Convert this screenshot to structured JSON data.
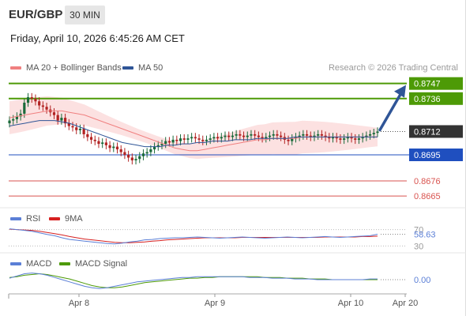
{
  "header": {
    "pair": "EUR/GBP",
    "timeframe": "30 MIN",
    "datetime": "Friday, April 10, 2026 6:45:26 AM CET"
  },
  "legend": {
    "ma20_label": "MA 20 + Bollinger Bands",
    "ma50_label": "MA 50",
    "credit": "Research © 2026 Trading Central",
    "rsi_label": "RSI",
    "rsi_ma_label": "9MA",
    "macd_label": "MACD",
    "macd_signal_label": "MACD Signal"
  },
  "colors": {
    "ma20": "#f08080",
    "ma50": "#2f5597",
    "bollinger_fill": "#fbdada",
    "candle_up": "#1a6a3a",
    "candle_down": "#b22222",
    "resistance": "#4d9a06",
    "support": "#1f4fbf",
    "minor_level": "#d9534f",
    "arrow": "#2f5597",
    "rsi": "#5b7fd6",
    "rsi_ma": "#d62020",
    "macd": "#5b7fd6",
    "macd_signal": "#4d9a06"
  },
  "chart_data": [
    {
      "type": "candlestick",
      "panel": "price",
      "ylim": [
        0.8657,
        0.8752
      ],
      "x_ticks": [
        "Apr 8",
        "Apr 9",
        "Apr 10",
        "Apr 20"
      ],
      "current_price": "0.8712",
      "levels": [
        {
          "value": 0.8747,
          "label": "0.8747",
          "kind": "resistance"
        },
        {
          "value": 0.8736,
          "label": "0.8736",
          "kind": "resistance"
        },
        {
          "value": 0.8695,
          "label": "0.8695",
          "kind": "support"
        },
        {
          "value": 0.8676,
          "label": "0.8676",
          "kind": "minor"
        },
        {
          "value": 0.8665,
          "label": "0.8665",
          "kind": "minor"
        }
      ],
      "projection": {
        "from": 0.8712,
        "to": 0.8747
      },
      "close": [
        0.872,
        0.8721,
        0.8723,
        0.8725,
        0.8733,
        0.8737,
        0.8736,
        0.8734,
        0.8731,
        0.873,
        0.8728,
        0.8726,
        0.8724,
        0.872,
        0.8722,
        0.8718,
        0.8716,
        0.8715,
        0.8713,
        0.8714,
        0.871,
        0.8708,
        0.8706,
        0.8705,
        0.8703,
        0.8704,
        0.8702,
        0.87,
        0.8701,
        0.8699,
        0.8697,
        0.8695,
        0.8693,
        0.8691,
        0.8692,
        0.8694,
        0.8696,
        0.8697,
        0.8699,
        0.8701,
        0.8702,
        0.8703,
        0.8705,
        0.8704,
        0.8706,
        0.8705,
        0.8707,
        0.8706,
        0.8707,
        0.8708,
        0.8707,
        0.8706,
        0.8705,
        0.8706,
        0.8707,
        0.8708,
        0.8707,
        0.8708,
        0.8709,
        0.8708,
        0.8709,
        0.871,
        0.8709,
        0.8708,
        0.8709,
        0.871,
        0.8709,
        0.8708,
        0.8707,
        0.8708,
        0.8709,
        0.871,
        0.8709,
        0.8708,
        0.8706,
        0.8705,
        0.8707,
        0.8708,
        0.8709,
        0.871,
        0.8709,
        0.8708,
        0.8709,
        0.871,
        0.8709,
        0.8708,
        0.8707,
        0.8708,
        0.8707,
        0.8706,
        0.8707,
        0.8708,
        0.8707,
        0.8706,
        0.8707,
        0.8708,
        0.8709,
        0.871,
        0.8711,
        0.8712
      ],
      "ma20": [
        0.8722,
        0.8723,
        0.8724,
        0.8725,
        0.8726,
        0.8727,
        0.8727,
        0.8727,
        0.8726,
        0.8725,
        0.8724,
        0.8722,
        0.872,
        0.8718,
        0.8716,
        0.8714,
        0.8712,
        0.871,
        0.8708,
        0.8706,
        0.8704,
        0.8702,
        0.87,
        0.8699,
        0.8698,
        0.8698,
        0.8699,
        0.87,
        0.8701,
        0.8702,
        0.8703,
        0.8704,
        0.8705,
        0.8706,
        0.8706,
        0.8707,
        0.8707,
        0.8707,
        0.8707,
        0.8708,
        0.8708,
        0.8708,
        0.8708,
        0.8708,
        0.8708,
        0.8708,
        0.8708,
        0.8708,
        0.8708,
        0.8708
      ],
      "ma50": [
        0.8716,
        0.8717,
        0.8718,
        0.8719,
        0.872,
        0.872,
        0.872,
        0.8719,
        0.8718,
        0.8716,
        0.8714,
        0.8712,
        0.871,
        0.8708,
        0.8706,
        0.8704,
        0.8703,
        0.8702,
        0.8701,
        0.8701,
        0.8701,
        0.8702,
        0.8702,
        0.8703,
        0.8703,
        0.8704,
        0.8704,
        0.8705,
        0.8705,
        0.8705,
        0.8706,
        0.8706,
        0.8706,
        0.8707,
        0.8707,
        0.8707,
        0.8707,
        0.8707,
        0.8708,
        0.8708,
        0.8708,
        0.8708,
        0.8708,
        0.8708,
        0.8708,
        0.8708,
        0.8708,
        0.8708,
        0.8708,
        0.8708
      ]
    },
    {
      "type": "line",
      "panel": "rsi",
      "ylim": [
        25,
        75
      ],
      "y_ticks": [
        "70",
        "30"
      ],
      "current_value": "58.63",
      "series": [
        {
          "name": "RSI",
          "values": [
            72,
            70,
            68,
            66,
            62,
            58,
            55,
            50,
            46,
            44,
            42,
            40,
            38,
            36,
            35,
            37,
            40,
            42,
            45,
            46,
            48,
            49,
            50,
            50,
            51,
            52,
            51,
            50,
            49,
            50,
            51,
            52,
            51,
            50,
            49,
            50,
            51,
            52,
            51,
            50,
            51,
            52,
            53,
            52,
            51,
            52,
            53,
            54,
            55,
            58.63
          ]
        },
        {
          "name": "9MA",
          "values": [
            71,
            70,
            69,
            68,
            66,
            63,
            60,
            57,
            53,
            50,
            47,
            45,
            43,
            41,
            39,
            38,
            38,
            39,
            40,
            42,
            43,
            45,
            46,
            47,
            48,
            49,
            50,
            50,
            50,
            50,
            50,
            51,
            51,
            51,
            51,
            51,
            51,
            51,
            51,
            51,
            51,
            51,
            52,
            52,
            52,
            52,
            52,
            53,
            53,
            54
          ]
        }
      ]
    },
    {
      "type": "line",
      "panel": "macd",
      "ylim": [
        -0.0015,
        0.0015
      ],
      "current_value": "0.00",
      "series": [
        {
          "name": "MACD",
          "values": [
            0.0002,
            0.0005,
            0.0008,
            0.0009,
            0.0008,
            0.0006,
            0.0003,
            0.0,
            -0.0003,
            -0.0006,
            -0.0009,
            -0.0011,
            -0.0012,
            -0.0011,
            -0.0009,
            -0.0007,
            -0.0005,
            -0.0003,
            -0.0002,
            -0.0001,
            0.0,
            0.0001,
            0.0002,
            0.0003,
            0.0003,
            0.0004,
            0.0004,
            0.0004,
            0.0004,
            0.0004,
            0.0004,
            0.0004,
            0.0003,
            0.0003,
            0.0003,
            0.0002,
            0.0002,
            0.0002,
            0.0001,
            0.0001,
            0.0001,
            0.0,
            0.0,
            0.0,
            0.0,
            0.0,
            0.0,
            0.0,
            0.0001,
            0.0001
          ]
        },
        {
          "name": "MACD Signal",
          "values": [
            0.0003,
            0.0004,
            0.0006,
            0.0007,
            0.0008,
            0.0007,
            0.0005,
            0.0003,
            0.0001,
            -0.0002,
            -0.0005,
            -0.0008,
            -0.001,
            -0.0011,
            -0.0011,
            -0.001,
            -0.0008,
            -0.0006,
            -0.0004,
            -0.0003,
            -0.0002,
            -0.0001,
            0.0,
            0.0001,
            0.0002,
            0.0002,
            0.0003,
            0.0003,
            0.0004,
            0.0004,
            0.0004,
            0.0004,
            0.0004,
            0.0004,
            0.0003,
            0.0003,
            0.0003,
            0.0002,
            0.0002,
            0.0002,
            0.0001,
            0.0001,
            0.0001,
            0.0,
            0.0,
            0.0,
            0.0,
            0.0,
            0.0,
            0.0
          ]
        }
      ]
    }
  ]
}
